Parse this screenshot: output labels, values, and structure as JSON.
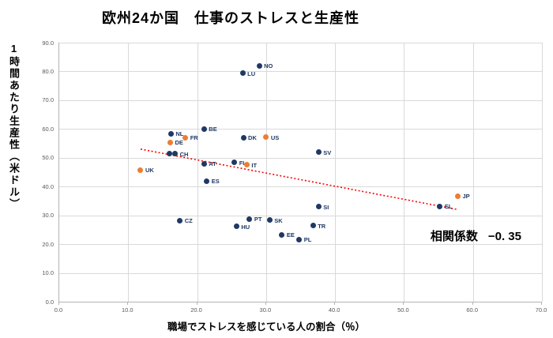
{
  "title": "欧州24か国　仕事のストレスと生産性",
  "annotation": {
    "label": "相関係数",
    "value": "−0. 35"
  },
  "chart_data": {
    "type": "scatter",
    "title": "欧州24か国　仕事のストレスと生産性",
    "xlabel": "職場でストレスを感じている人の割合（％）",
    "ylabel": "1時間あたり生産性（米ドル）",
    "xlim": [
      0,
      70
    ],
    "ylim": [
      0,
      90
    ],
    "x_ticks": [
      "0.0",
      "10.0",
      "20.0",
      "30.0",
      "40.0",
      "50.0",
      "60.0",
      "70.0"
    ],
    "y_ticks": [
      "0.0",
      "10.0",
      "20.0",
      "30.0",
      "40.0",
      "50.0",
      "60.0",
      "70.0",
      "80.0",
      "90.0"
    ],
    "grid": true,
    "legend": "none",
    "colors": {
      "europe_point": "#1f3864",
      "g7_point": "#ed7d31",
      "trendline": "#ff0000",
      "gridline": "#d9d9d9",
      "tick_text": "#595959",
      "point_label": "#1f3864"
    },
    "points": [
      {
        "label": "NO",
        "x": 29.0,
        "y": 82.0,
        "color": "#1f3864"
      },
      {
        "label": "LU",
        "x": 26.6,
        "y": 79.3,
        "color": "#1f3864"
      },
      {
        "label": "BE",
        "x": 21.0,
        "y": 60.0,
        "color": "#1f3864"
      },
      {
        "label": "NL",
        "x": 16.2,
        "y": 58.4,
        "color": "#1f3864"
      },
      {
        "label": "FR",
        "x": 18.3,
        "y": 57.0,
        "color": "#ed7d31"
      },
      {
        "label": "US",
        "x": 30.0,
        "y": 57.2,
        "color": "#ed7d31"
      },
      {
        "label": "DK",
        "x": 26.7,
        "y": 57.0,
        "color": "#1f3864"
      },
      {
        "label": "DE",
        "x": 16.1,
        "y": 55.4,
        "color": "#ed7d31"
      },
      {
        "label": "SV",
        "x": 37.6,
        "y": 51.9,
        "color": "#1f3864"
      },
      {
        "label": "",
        "x": 16.0,
        "y": 51.5,
        "color": "#1f3864"
      },
      {
        "label": "CH",
        "x": 16.8,
        "y": 51.4,
        "color": "#1f3864"
      },
      {
        "label": "FI",
        "x": 25.4,
        "y": 48.4,
        "color": "#1f3864"
      },
      {
        "label": "AT",
        "x": 21.0,
        "y": 48.0,
        "color": "#1f3864"
      },
      {
        "label": "IT",
        "x": 27.2,
        "y": 47.5,
        "color": "#ed7d31"
      },
      {
        "label": "UK",
        "x": 11.8,
        "y": 45.8,
        "color": "#ed7d31"
      },
      {
        "label": "ES",
        "x": 21.4,
        "y": 41.9,
        "color": "#1f3864"
      },
      {
        "label": "JP",
        "x": 57.8,
        "y": 36.7,
        "color": "#ed7d31"
      },
      {
        "label": "EL",
        "x": 55.2,
        "y": 33.2,
        "color": "#1f3864"
      },
      {
        "label": "SI",
        "x": 37.6,
        "y": 33.0,
        "color": "#1f3864"
      },
      {
        "label": "PT",
        "x": 27.6,
        "y": 28.7,
        "color": "#1f3864"
      },
      {
        "label": "SK",
        "x": 30.5,
        "y": 28.3,
        "color": "#1f3864"
      },
      {
        "label": "CZ",
        "x": 17.5,
        "y": 28.2,
        "color": "#1f3864"
      },
      {
        "label": "TR",
        "x": 36.8,
        "y": 26.4,
        "color": "#1f3864"
      },
      {
        "label": "HU",
        "x": 25.7,
        "y": 26.2,
        "color": "#1f3864"
      },
      {
        "label": "EE",
        "x": 32.3,
        "y": 23.3,
        "color": "#1f3864"
      },
      {
        "label": "PL",
        "x": 34.8,
        "y": 21.6,
        "color": "#1f3864"
      }
    ],
    "trendline": {
      "style": "dotted",
      "color": "#ff0000",
      "from": {
        "x": 11.8,
        "y": 53.0
      },
      "to": {
        "x": 57.8,
        "y": 32.0
      }
    },
    "annotation_text": "相関係数 −0. 35"
  }
}
